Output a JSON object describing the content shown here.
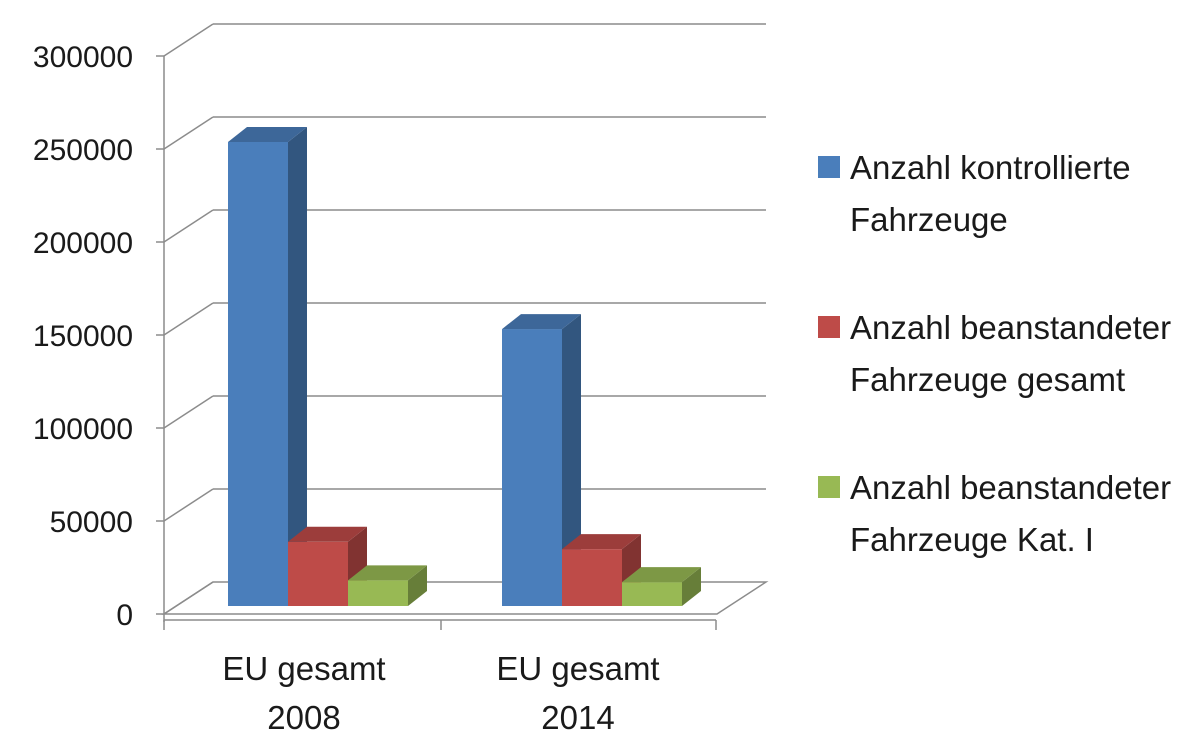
{
  "chart_data": {
    "type": "bar",
    "categories": [
      "EU gesamt 2008",
      "EU gesamt 2014"
    ],
    "category_lines": [
      [
        "EU gesamt",
        "2008"
      ],
      [
        "EU gesamt",
        "2014"
      ]
    ],
    "series": [
      {
        "name": "Anzahl kontrollierte Fahrzeuge",
        "values": [
          253000,
          151000
        ],
        "color": "#4a7ebb"
      },
      {
        "name": "Anzahl beanstandeter Fahrzeuge gesamt",
        "values": [
          35000,
          31000
        ],
        "color": "#be4b48"
      },
      {
        "name": "Anzahl beanstandeter Fahrzeuge Kat. I",
        "values": [
          14000,
          13000
        ],
        "color": "#98b954"
      }
    ],
    "yticks": [
      "0",
      "50000",
      "100000",
      "150000",
      "200000",
      "250000",
      "300000"
    ],
    "ylim": [
      0,
      300000
    ],
    "grid": true,
    "legend_position": "right",
    "three_d": true
  }
}
